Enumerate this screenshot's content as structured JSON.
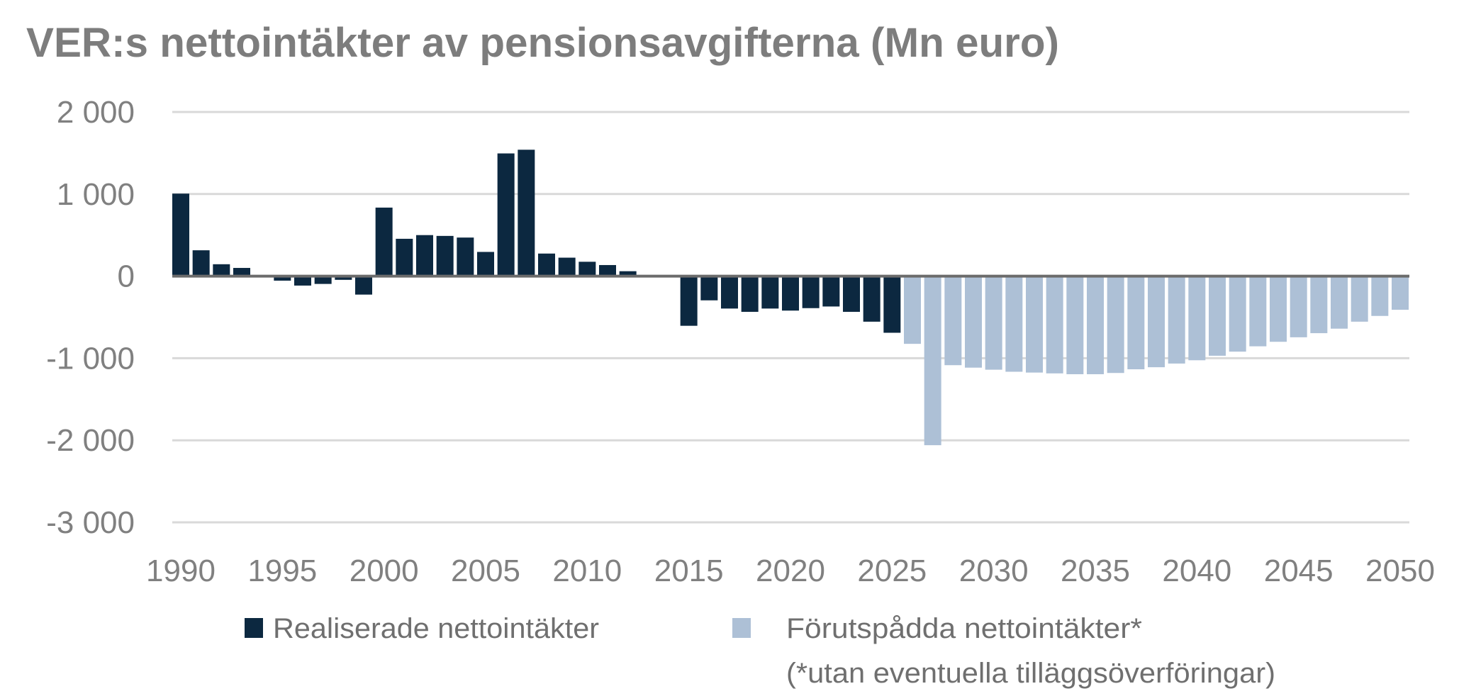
{
  "chart_data": {
    "type": "bar",
    "title": "VER:s nettointäkter av pensionsavgifterna (Mn euro)",
    "xlabel": "",
    "ylabel": "",
    "ylim": [
      -3000,
      2000
    ],
    "yticks": [
      2000,
      1000,
      0,
      -1000,
      -2000,
      -3000
    ],
    "ytick_labels": [
      "2 000",
      "1 000",
      "0",
      "-1 000",
      "-2 000",
      "-3 000"
    ],
    "xticks": [
      1990,
      1995,
      2000,
      2005,
      2010,
      2015,
      2020,
      2025,
      2030,
      2035,
      2040,
      2045,
      2050
    ],
    "grid": true,
    "legend_placement": "bottom",
    "colors": {
      "realised": "#0c2840",
      "forecast": "#adc0d6",
      "text": "#808080"
    },
    "series": [
      {
        "name": "Realiserade nettointäkter",
        "x": [
          1990,
          1991,
          1992,
          1993,
          1994,
          1995,
          1996,
          1997,
          1998,
          1999,
          2000,
          2001,
          2002,
          2003,
          2004,
          2005,
          2006,
          2007,
          2008,
          2009,
          2010,
          2011,
          2012,
          2013,
          2014,
          2015,
          2016,
          2017,
          2018,
          2019,
          2020,
          2021,
          2022,
          2023,
          2024,
          2025
        ],
        "values": [
          1005,
          315,
          145,
          100,
          0,
          -55,
          -115,
          -95,
          -45,
          -225,
          835,
          455,
          500,
          490,
          470,
          295,
          1495,
          1540,
          275,
          225,
          175,
          135,
          60,
          0,
          0,
          -605,
          -295,
          -395,
          -435,
          -395,
          -420,
          -390,
          -370,
          -435,
          -555,
          -690
        ]
      },
      {
        "name": "Förutspådda nettointäkter*",
        "note": "(*utan eventuella tilläggsöverföringar)",
        "x": [
          2026,
          2027,
          2028,
          2029,
          2030,
          2031,
          2032,
          2033,
          2034,
          2035,
          2036,
          2037,
          2038,
          2039,
          2040,
          2041,
          2042,
          2043,
          2044,
          2045,
          2046,
          2047,
          2048,
          2049,
          2050
        ],
        "values": [
          -825,
          -2060,
          -1085,
          -1115,
          -1140,
          -1165,
          -1175,
          -1185,
          -1195,
          -1195,
          -1180,
          -1135,
          -1110,
          -1065,
          -1025,
          -970,
          -920,
          -855,
          -800,
          -745,
          -695,
          -640,
          -555,
          -485,
          -410
        ]
      }
    ]
  }
}
